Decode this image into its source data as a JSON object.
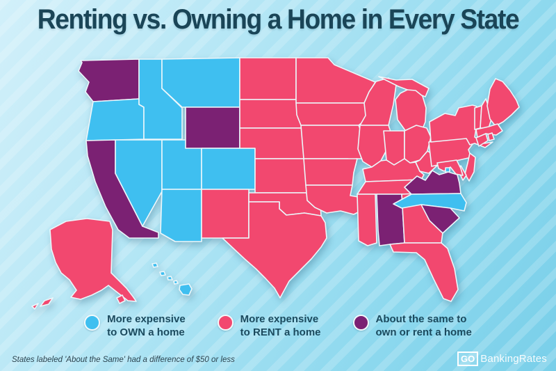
{
  "title": "Renting vs. Owning a Home in Every State",
  "footnote": "States labeled 'About the Same' had a difference of $50 or less",
  "logo": {
    "go": "GO",
    "rest": "BankingRates"
  },
  "legend": {
    "items": [
      {
        "key": "own",
        "color": "#3FBFF0",
        "line1": "More expensive",
        "line2": "to OWN a home"
      },
      {
        "key": "rent",
        "color": "#F2486F",
        "line1": "More expensive",
        "line2": "to RENT a home"
      },
      {
        "key": "same",
        "color": "#7B2173",
        "line1": "About the same to",
        "line2": "own or rent a home"
      }
    ]
  },
  "map": {
    "category_colors": {
      "own": "#3FBFF0",
      "rent": "#F2486F",
      "same": "#7B2173"
    },
    "category_labels": {
      "own": "More expensive to OWN a home",
      "rent": "More expensive to RENT a home",
      "same": "About the same to own or rent a home"
    },
    "states": [
      {
        "id": "AK",
        "name": "Alaska",
        "category": "rent"
      },
      {
        "id": "HI",
        "name": "Hawaii",
        "category": "own"
      },
      {
        "id": "WA",
        "name": "Washington",
        "category": "same"
      },
      {
        "id": "OR",
        "name": "Oregon",
        "category": "own"
      },
      {
        "id": "CA",
        "name": "California",
        "category": "same"
      },
      {
        "id": "ID",
        "name": "Idaho",
        "category": "own"
      },
      {
        "id": "NV",
        "name": "Nevada",
        "category": "own"
      },
      {
        "id": "UT",
        "name": "Utah",
        "category": "own"
      },
      {
        "id": "AZ",
        "name": "Arizona",
        "category": "own"
      },
      {
        "id": "MT",
        "name": "Montana",
        "category": "own"
      },
      {
        "id": "WY",
        "name": "Wyoming",
        "category": "same"
      },
      {
        "id": "CO",
        "name": "Colorado",
        "category": "own"
      },
      {
        "id": "NM",
        "name": "New Mexico",
        "category": "rent"
      },
      {
        "id": "ND",
        "name": "North Dakota",
        "category": "rent"
      },
      {
        "id": "SD",
        "name": "South Dakota",
        "category": "rent"
      },
      {
        "id": "NE",
        "name": "Nebraska",
        "category": "rent"
      },
      {
        "id": "KS",
        "name": "Kansas",
        "category": "rent"
      },
      {
        "id": "OK",
        "name": "Oklahoma",
        "category": "rent"
      },
      {
        "id": "TX",
        "name": "Texas",
        "category": "rent"
      },
      {
        "id": "MN",
        "name": "Minnesota",
        "category": "rent"
      },
      {
        "id": "IA",
        "name": "Iowa",
        "category": "rent"
      },
      {
        "id": "MO",
        "name": "Missouri",
        "category": "rent"
      },
      {
        "id": "AR",
        "name": "Arkansas",
        "category": "rent"
      },
      {
        "id": "LA",
        "name": "Louisiana",
        "category": "rent"
      },
      {
        "id": "WI",
        "name": "Wisconsin",
        "category": "rent"
      },
      {
        "id": "MI",
        "name": "Michigan",
        "category": "rent"
      },
      {
        "id": "IL",
        "name": "Illinois",
        "category": "rent"
      },
      {
        "id": "IN",
        "name": "Indiana",
        "category": "rent"
      },
      {
        "id": "OH",
        "name": "Ohio",
        "category": "rent"
      },
      {
        "id": "KY",
        "name": "Kentucky",
        "category": "rent"
      },
      {
        "id": "TN",
        "name": "Tennessee",
        "category": "rent"
      },
      {
        "id": "MS",
        "name": "Mississippi",
        "category": "rent"
      },
      {
        "id": "AL",
        "name": "Alabama",
        "category": "same"
      },
      {
        "id": "GA",
        "name": "Georgia",
        "category": "rent"
      },
      {
        "id": "FL",
        "name": "Florida",
        "category": "rent"
      },
      {
        "id": "WV",
        "name": "West Virginia",
        "category": "rent"
      },
      {
        "id": "VA",
        "name": "Virginia",
        "category": "same"
      },
      {
        "id": "NC",
        "name": "North Carolina",
        "category": "own"
      },
      {
        "id": "SC",
        "name": "South Carolina",
        "category": "same"
      },
      {
        "id": "PA",
        "name": "Pennsylvania",
        "category": "rent"
      },
      {
        "id": "NY",
        "name": "New York",
        "category": "rent"
      },
      {
        "id": "VT",
        "name": "Vermont",
        "category": "rent"
      },
      {
        "id": "NH",
        "name": "New Hampshire",
        "category": "rent"
      },
      {
        "id": "ME",
        "name": "Maine",
        "category": "rent"
      },
      {
        "id": "MA",
        "name": "Massachusetts",
        "category": "rent"
      },
      {
        "id": "CT",
        "name": "Connecticut",
        "category": "rent"
      },
      {
        "id": "RI",
        "name": "Rhode Island",
        "category": "rent"
      },
      {
        "id": "NJ",
        "name": "New Jersey",
        "category": "rent"
      },
      {
        "id": "DE",
        "name": "Delaware",
        "category": "rent"
      },
      {
        "id": "MD",
        "name": "Maryland",
        "category": "rent"
      },
      {
        "id": "DC",
        "name": "Washington, D.C.",
        "category": "own"
      }
    ]
  },
  "style_colors": {
    "title_text": "#1A4557",
    "legend_text": "#1B4A5E",
    "state_border": "#ECF7FB",
    "background_top_left": "#D2F0FA",
    "background_bottom_right": "#79CFE9"
  }
}
